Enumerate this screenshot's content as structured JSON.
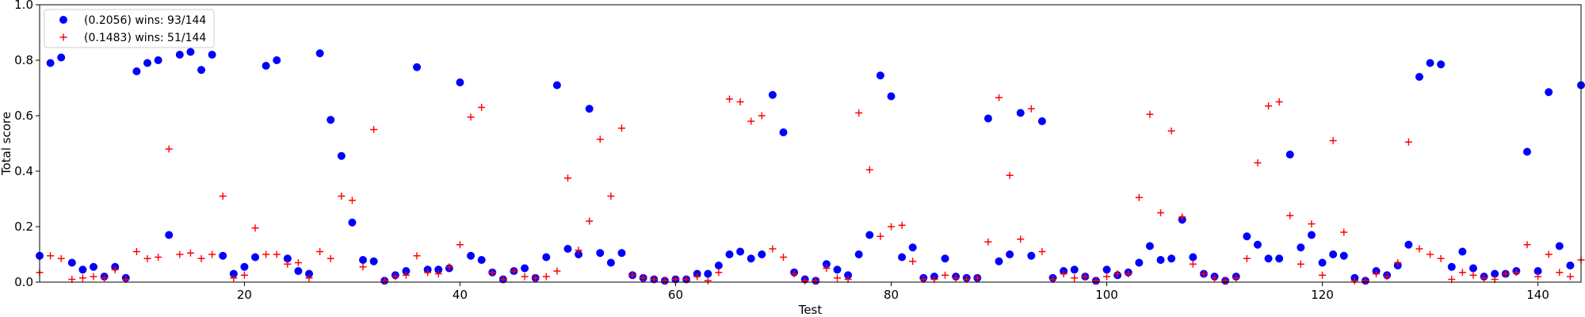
{
  "chart_data": {
    "type": "scatter",
    "title": "",
    "xlabel": "Test",
    "ylabel": "Total score",
    "xlim": [
      1,
      144
    ],
    "ylim": [
      0,
      1.0
    ],
    "x_ticks": [
      20,
      40,
      60,
      80,
      100,
      120,
      140
    ],
    "y_ticks": [
      0.0,
      0.2,
      0.4,
      0.6,
      0.8,
      1.0
    ],
    "x_tick_labels": [
      "20",
      "40",
      "60",
      "80",
      "100",
      "120",
      "140"
    ],
    "y_tick_labels": [
      "0.0",
      "0.2",
      "0.4",
      "0.6",
      "0.8",
      "1.0"
    ],
    "grid": false,
    "legend_position": "upper-left",
    "series": [
      {
        "name": "(0.2056) wins: 93/144",
        "marker": "circle",
        "color": "#0000ff",
        "x": [
          1,
          2,
          3,
          4,
          5,
          6,
          7,
          8,
          9,
          10,
          11,
          12,
          13,
          14,
          15,
          16,
          17,
          18,
          19,
          20,
          21,
          22,
          23,
          24,
          25,
          26,
          27,
          28,
          29,
          30,
          31,
          32,
          33,
          34,
          35,
          36,
          37,
          38,
          39,
          40,
          41,
          42,
          43,
          44,
          45,
          46,
          47,
          48,
          49,
          50,
          51,
          52,
          53,
          54,
          55,
          56,
          57,
          58,
          59,
          60,
          61,
          62,
          63,
          64,
          65,
          66,
          67,
          68,
          69,
          70,
          71,
          72,
          73,
          74,
          75,
          76,
          77,
          78,
          79,
          80,
          81,
          82,
          83,
          84,
          85,
          86,
          87,
          88,
          89,
          90,
          91,
          92,
          93,
          94,
          95,
          96,
          97,
          98,
          99,
          100,
          101,
          102,
          103,
          104,
          105,
          106,
          107,
          108,
          109,
          110,
          111,
          112,
          113,
          114,
          115,
          116,
          117,
          118,
          119,
          120,
          121,
          122,
          123,
          124,
          125,
          126,
          127,
          128,
          129,
          130,
          131,
          132,
          133,
          134,
          135,
          136,
          137,
          138,
          139,
          140,
          141,
          142,
          143,
          144
        ],
        "y": [
          0.095,
          0.79,
          0.81,
          0.07,
          0.045,
          0.055,
          0.02,
          0.055,
          0.015,
          0.76,
          0.79,
          0.8,
          0.17,
          0.82,
          0.83,
          0.765,
          0.82,
          0.095,
          0.03,
          0.055,
          0.09,
          0.78,
          0.8,
          0.085,
          0.04,
          0.03,
          0.825,
          0.585,
          0.455,
          0.215,
          0.08,
          0.075,
          0.005,
          0.025,
          0.04,
          0.775,
          0.045,
          0.045,
          0.05,
          0.72,
          0.095,
          0.08,
          0.035,
          0.01,
          0.04,
          0.05,
          0.015,
          0.09,
          0.71,
          0.12,
          0.1,
          0.625,
          0.105,
          0.07,
          0.105,
          0.025,
          0.015,
          0.01,
          0.005,
          0.01,
          0.01,
          0.03,
          0.03,
          0.06,
          0.1,
          0.11,
          0.085,
          0.1,
          0.675,
          0.54,
          0.035,
          0.01,
          0.005,
          0.065,
          0.045,
          0.025,
          0.1,
          0.17,
          0.745,
          0.67,
          0.09,
          0.125,
          0.015,
          0.02,
          0.085,
          0.02,
          0.015,
          0.015,
          0.59,
          0.075,
          0.1,
          0.61,
          0.095,
          0.58,
          0.015,
          0.04,
          0.045,
          0.02,
          0.005,
          0.045,
          0.025,
          0.035,
          0.07,
          0.13,
          0.08,
          0.085,
          0.225,
          0.09,
          0.03,
          0.02,
          0.005,
          0.02,
          0.165,
          0.135,
          0.085,
          0.085,
          0.46,
          0.125,
          0.17,
          0.07,
          0.1,
          0.095,
          0.015,
          0.005,
          0.04,
          0.025,
          0.06,
          0.135,
          0.74,
          0.79,
          0.785,
          0.055,
          0.11,
          0.05,
          0.02,
          0.03,
          0.03,
          0.04,
          0.47,
          0.04,
          0.685,
          0.13,
          0.06,
          0.71
        ]
      },
      {
        "name": "(0.1483) wins: 51/144",
        "marker": "plus",
        "color": "#ff0000",
        "x": [
          1,
          2,
          3,
          4,
          5,
          6,
          7,
          8,
          9,
          10,
          11,
          12,
          13,
          14,
          15,
          16,
          17,
          18,
          19,
          20,
          21,
          22,
          23,
          24,
          25,
          26,
          27,
          28,
          29,
          30,
          31,
          32,
          33,
          34,
          35,
          36,
          37,
          38,
          39,
          40,
          41,
          42,
          43,
          44,
          45,
          46,
          47,
          48,
          49,
          50,
          51,
          52,
          53,
          54,
          55,
          56,
          57,
          58,
          59,
          60,
          61,
          62,
          63,
          64,
          65,
          66,
          67,
          68,
          69,
          70,
          71,
          72,
          73,
          74,
          75,
          76,
          77,
          78,
          79,
          80,
          81,
          82,
          83,
          84,
          85,
          86,
          87,
          88,
          89,
          90,
          91,
          92,
          93,
          94,
          95,
          96,
          97,
          98,
          99,
          100,
          101,
          102,
          103,
          104,
          105,
          106,
          107,
          108,
          109,
          110,
          111,
          112,
          113,
          114,
          115,
          116,
          117,
          118,
          119,
          120,
          121,
          122,
          123,
          124,
          125,
          126,
          127,
          128,
          129,
          130,
          131,
          132,
          133,
          134,
          135,
          136,
          137,
          138,
          139,
          140,
          141,
          142,
          143,
          144
        ],
        "y": [
          0.035,
          0.095,
          0.085,
          0.01,
          0.015,
          0.02,
          0.015,
          0.045,
          0.01,
          0.11,
          0.085,
          0.09,
          0.48,
          0.1,
          0.105,
          0.085,
          0.1,
          0.31,
          0.015,
          0.025,
          0.195,
          0.1,
          0.1,
          0.065,
          0.07,
          0.015,
          0.11,
          0.085,
          0.31,
          0.295,
          0.055,
          0.55,
          0.005,
          0.02,
          0.025,
          0.095,
          0.035,
          0.03,
          0.055,
          0.135,
          0.595,
          0.63,
          0.035,
          0.01,
          0.04,
          0.02,
          0.015,
          0.02,
          0.04,
          0.375,
          0.115,
          0.22,
          0.515,
          0.31,
          0.555,
          0.025,
          0.015,
          0.01,
          0.005,
          0.01,
          0.01,
          0.02,
          0.005,
          0.035,
          0.66,
          0.65,
          0.58,
          0.6,
          0.12,
          0.09,
          0.03,
          0.005,
          0.005,
          0.05,
          0.015,
          0.01,
          0.61,
          0.405,
          0.165,
          0.2,
          0.205,
          0.075,
          0.01,
          0.01,
          0.025,
          0.015,
          0.01,
          0.015,
          0.145,
          0.665,
          0.385,
          0.155,
          0.625,
          0.11,
          0.01,
          0.03,
          0.015,
          0.02,
          0.005,
          0.02,
          0.03,
          0.03,
          0.305,
          0.605,
          0.25,
          0.545,
          0.235,
          0.065,
          0.03,
          0.015,
          0.005,
          0.015,
          0.085,
          0.43,
          0.635,
          0.65,
          0.24,
          0.065,
          0.21,
          0.025,
          0.51,
          0.18,
          0.005,
          0.005,
          0.03,
          0.02,
          0.07,
          0.505,
          0.12,
          0.1,
          0.085,
          0.01,
          0.035,
          0.025,
          0.015,
          0.01,
          0.03,
          0.035,
          0.135,
          0.02,
          0.1,
          0.035,
          0.02,
          0.08
        ]
      }
    ]
  }
}
